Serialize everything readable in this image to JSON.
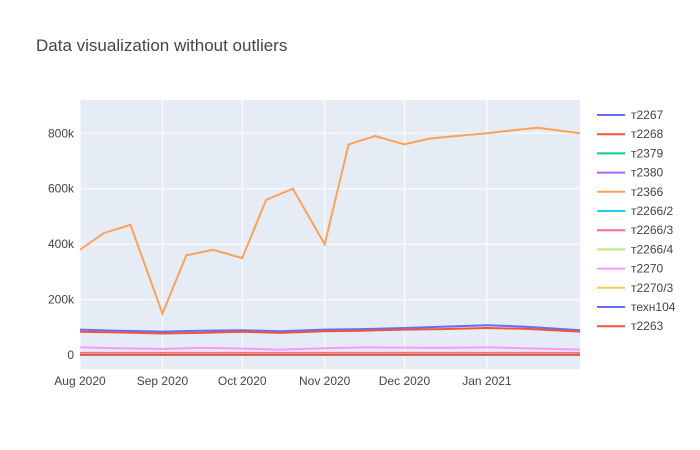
{
  "chart_data": {
    "type": "line",
    "title": "Data visualization without outliers",
    "xlabel": "",
    "ylabel": "",
    "x_range": [
      "2020-08-01",
      "2021-02-05"
    ],
    "ylim": [
      -50000,
      920000
    ],
    "x_ticks": [
      {
        "date": "2020-08-01",
        "label": "Aug 2020"
      },
      {
        "date": "2020-09-01",
        "label": "Sep 2020"
      },
      {
        "date": "2020-10-01",
        "label": "Oct 2020"
      },
      {
        "date": "2020-11-01",
        "label": "Nov 2020"
      },
      {
        "date": "2020-12-01",
        "label": "Dec 2020"
      },
      {
        "date": "2021-01-01",
        "label": "Jan 2021"
      }
    ],
    "y_ticks": [
      {
        "value": 0,
        "label": "0"
      },
      {
        "value": 200000,
        "label": "200k"
      },
      {
        "value": 400000,
        "label": "400k"
      },
      {
        "value": 600000,
        "label": "600k"
      },
      {
        "value": 800000,
        "label": "800k"
      }
    ],
    "grid": true,
    "legend_position": "right",
    "plot_bg": "#e5ecf6",
    "series": [
      {
        "name": "т2267",
        "color": "#636efa",
        "x": [
          "2020-08-01",
          "2020-08-15",
          "2020-09-01",
          "2020-09-15",
          "2020-10-01",
          "2020-10-15",
          "2020-11-01",
          "2020-11-15",
          "2020-12-01",
          "2020-12-15",
          "2021-01-01",
          "2021-01-15",
          "2021-02-05"
        ],
        "y": [
          92000,
          88000,
          85000,
          88000,
          90000,
          86000,
          92000,
          94000,
          98000,
          102000,
          108000,
          103000,
          90000
        ]
      },
      {
        "name": "т2268",
        "color": "#ef553b",
        "x": [
          "2020-08-01",
          "2020-08-15",
          "2020-09-01",
          "2020-09-15",
          "2020-10-01",
          "2020-10-15",
          "2020-11-01",
          "2020-11-15",
          "2020-12-01",
          "2020-12-15",
          "2021-01-01",
          "2021-01-15",
          "2021-02-05"
        ],
        "y": [
          84000,
          82000,
          78000,
          80000,
          84000,
          80000,
          86000,
          88000,
          92000,
          94000,
          98000,
          95000,
          85000
        ]
      },
      {
        "name": "т2379",
        "color": "#00cc96",
        "x": [
          "2020-08-01",
          "2020-10-01",
          "2020-12-01",
          "2021-02-05"
        ],
        "y": [
          3000,
          3000,
          3000,
          3000
        ]
      },
      {
        "name": "т2380",
        "color": "#ab63fa",
        "x": [
          "2020-08-01",
          "2020-10-01",
          "2020-12-01",
          "2021-02-05"
        ],
        "y": [
          5000,
          5000,
          5000,
          5000
        ]
      },
      {
        "name": "т2366",
        "color": "#ffa15a",
        "x": [
          "2020-08-01",
          "2020-08-10",
          "2020-08-20",
          "2020-09-01",
          "2020-09-10",
          "2020-09-20",
          "2020-10-01",
          "2020-10-10",
          "2020-10-20",
          "2020-11-01",
          "2020-11-10",
          "2020-11-20",
          "2020-12-01",
          "2020-12-10",
          "2020-12-20",
          "2021-01-01",
          "2021-01-10",
          "2021-01-20",
          "2021-02-05"
        ],
        "y": [
          380000,
          440000,
          470000,
          150000,
          360000,
          380000,
          350000,
          560000,
          600000,
          400000,
          760000,
          790000,
          760000,
          780000,
          790000,
          800000,
          810000,
          820000,
          800000
        ]
      },
      {
        "name": "т2266/2",
        "color": "#19d3f3",
        "x": [
          "2020-08-01",
          "2020-10-01",
          "2020-12-01",
          "2021-02-05"
        ],
        "y": [
          6000,
          6000,
          6000,
          6000
        ]
      },
      {
        "name": "т2266/3",
        "color": "#ff6692",
        "x": [
          "2020-08-01",
          "2020-10-01",
          "2020-12-01",
          "2021-02-05"
        ],
        "y": [
          8000,
          8000,
          8000,
          8000
        ]
      },
      {
        "name": "т2266/4",
        "color": "#b6e880",
        "x": [
          "2020-08-01",
          "2020-10-01",
          "2020-12-01",
          "2021-02-05"
        ],
        "y": [
          4000,
          4000,
          4000,
          4000
        ]
      },
      {
        "name": "т2270",
        "color": "#ff97ff",
        "x": [
          "2020-08-01",
          "2020-08-15",
          "2020-09-01",
          "2020-09-15",
          "2020-10-01",
          "2020-10-15",
          "2020-11-01",
          "2020-11-15",
          "2020-12-01",
          "2020-12-15",
          "2021-01-01",
          "2021-01-15",
          "2021-02-05"
        ],
        "y": [
          28000,
          25000,
          22000,
          26000,
          24000,
          20000,
          25000,
          28000,
          27000,
          26000,
          28000,
          25000,
          20000
        ]
      },
      {
        "name": "т2270/3",
        "color": "#fecb52",
        "x": [
          "2020-08-01",
          "2020-10-01",
          "2020-12-01",
          "2021-02-05"
        ],
        "y": [
          2000,
          2000,
          2000,
          2000
        ]
      },
      {
        "name": "техн104",
        "color": "#636efa",
        "x": [
          "2020-08-01",
          "2020-10-01",
          "2020-12-01",
          "2021-02-05"
        ],
        "y": [
          1000,
          1000,
          1000,
          1000
        ]
      },
      {
        "name": "т2263",
        "color": "#ef553b",
        "x": [
          "2020-08-01",
          "2020-10-01",
          "2020-12-01",
          "2021-02-05"
        ],
        "y": [
          2000,
          2000,
          2000,
          2000
        ]
      }
    ]
  }
}
